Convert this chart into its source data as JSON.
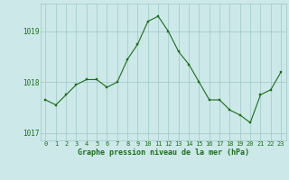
{
  "x": [
    0,
    1,
    2,
    3,
    4,
    5,
    6,
    7,
    8,
    9,
    10,
    11,
    12,
    13,
    14,
    15,
    16,
    17,
    18,
    19,
    20,
    21,
    22,
    23
  ],
  "y": [
    1017.65,
    1017.55,
    1017.75,
    1017.95,
    1018.05,
    1018.05,
    1017.9,
    1018.0,
    1018.45,
    1018.75,
    1019.2,
    1019.3,
    1019.0,
    1018.6,
    1018.35,
    1018.0,
    1017.65,
    1017.65,
    1017.45,
    1017.35,
    1017.2,
    1017.75,
    1017.85,
    1018.2
  ],
  "line_color": "#1a6e1a",
  "marker_color": "#1a6e1a",
  "bg_color": "#cce8e8",
  "grid_color": "#9dc8c8",
  "title": "Graphe pression niveau de la mer (hPa)",
  "title_color": "#1a6e1a",
  "ylabel_ticks": [
    1017,
    1018,
    1019
  ],
  "xlim": [
    -0.5,
    23.5
  ],
  "ylim": [
    1016.85,
    1019.55
  ],
  "xlabel_ticks": [
    0,
    1,
    2,
    3,
    4,
    5,
    6,
    7,
    8,
    9,
    10,
    11,
    12,
    13,
    14,
    15,
    16,
    17,
    18,
    19,
    20,
    21,
    22,
    23
  ],
  "tick_fontsize": 5.0,
  "ytick_fontsize": 5.5,
  "title_fontsize": 6.0
}
